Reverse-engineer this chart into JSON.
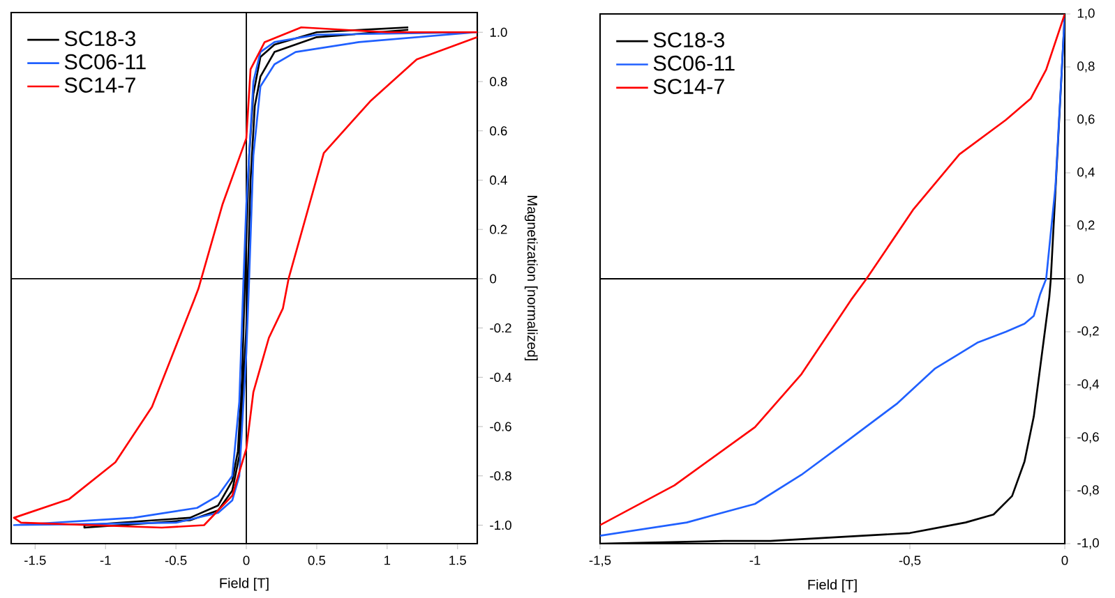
{
  "chart_data": [
    {
      "type": "line",
      "xlabel": "Field [T]",
      "ylabel": "Magnetization [normalized]",
      "legend": "top left",
      "xlim": [
        -1.67,
        1.64
      ],
      "ylim": [
        -1.075,
        1.08
      ],
      "xticks": [
        -1.5,
        -1,
        -0.5,
        0,
        0.5,
        1,
        1.5
      ],
      "yticks": [
        {
          "value": -1,
          "label": "-1.0"
        },
        -0.8,
        -0.6,
        -0.4,
        -0.2,
        0,
        0.2,
        0.4,
        0.6,
        0.8,
        {
          "value": 1,
          "label": "1.0"
        }
      ],
      "ref_lines": [
        {
          "axis": "y",
          "value": 0
        },
        {
          "axis": "x",
          "value": 0
        }
      ],
      "series": [
        {
          "name": "SC18-3",
          "color": "#000000",
          "x": [
            1.15,
            0.5,
            0.2,
            0.1,
            0.05,
            0.02,
            -0.01,
            -0.03,
            -0.06,
            -0.1,
            -0.2,
            -0.4,
            -1.15,
            -1.15,
            -0.4,
            -0.2,
            -0.1,
            -0.05,
            0,
            0.01,
            0.03,
            0.06,
            0.1,
            0.2,
            0.5,
            1.15
          ],
          "values": [
            1.02,
            1.0,
            0.95,
            0.9,
            0.75,
            0.5,
            0,
            -0.4,
            -0.7,
            -0.82,
            -0.92,
            -0.97,
            -1.0,
            -1.01,
            -0.98,
            -0.94,
            -0.86,
            -0.72,
            -0.2,
            0,
            0.4,
            0.7,
            0.82,
            0.92,
            0.98,
            1.01
          ]
        },
        {
          "name": "SC06-11",
          "color": "#2060ff",
          "x": [
            1.64,
            0.5,
            0.2,
            0.1,
            0.05,
            0,
            -0.02,
            -0.05,
            -0.1,
            -0.2,
            -0.35,
            -0.8,
            -1.65,
            -0.5,
            -0.2,
            -0.1,
            -0.05,
            0,
            0.02,
            0.05,
            0.1,
            0.2,
            0.35,
            0.8,
            1.63
          ],
          "values": [
            1.0,
            0.99,
            0.96,
            0.92,
            0.8,
            0.3,
            0,
            -0.5,
            -0.8,
            -0.88,
            -0.93,
            -0.97,
            -1.0,
            -0.99,
            -0.95,
            -0.9,
            -0.8,
            -0.3,
            0,
            0.5,
            0.78,
            0.87,
            0.92,
            0.96,
            1.0
          ]
        },
        {
          "name": "SC14-7",
          "color": "#ff0000",
          "x": [
            1.64,
            1.0,
            0.39,
            0.13,
            0.03,
            0,
            -0.17,
            -0.34,
            -0.37,
            -0.67,
            -0.93,
            -1.26,
            -1.65,
            -1.6,
            -0.6,
            -0.3,
            -0.1,
            0,
            0.05,
            0.16,
            0.26,
            0.3,
            0.55,
            0.88,
            1.21,
            1.64
          ],
          "values": [
            1.0,
            1.0,
            1.02,
            0.96,
            0.85,
            0.57,
            0.3,
            -0.04,
            -0.085,
            -0.52,
            -0.745,
            -0.895,
            -0.97,
            -0.99,
            -1.01,
            -1.0,
            -0.88,
            -0.69,
            -0.46,
            -0.24,
            -0.12,
            0,
            0.51,
            0.72,
            0.89,
            0.98
          ]
        }
      ]
    },
    {
      "type": "line",
      "xlabel": "Field [T]",
      "legend": "top left",
      "xlim": [
        -1.5,
        0
      ],
      "ylim": [
        -1,
        1
      ],
      "xticks": [
        {
          "value": -1.5,
          "label": "-1,5"
        },
        -1,
        {
          "value": -0.5,
          "label": "-0,5"
        },
        0
      ],
      "yticks": [
        {
          "value": -1,
          "label": "-1,0"
        },
        {
          "value": -0.8,
          "label": "-0,8"
        },
        {
          "value": -0.6,
          "label": "-0,6"
        },
        {
          "value": -0.4,
          "label": "-0,4"
        },
        {
          "value": -0.2,
          "label": "-0,2"
        },
        0,
        {
          "value": 0.2,
          "label": "0,2"
        },
        {
          "value": 0.4,
          "label": "0,4"
        },
        {
          "value": 0.6,
          "label": "0,6"
        },
        {
          "value": 0.8,
          "label": "0,8"
        },
        {
          "value": 1,
          "label": "1,0"
        }
      ],
      "ref_lines": [
        {
          "axis": "y",
          "value": 0
        }
      ],
      "series": [
        {
          "name": "SC18-3",
          "color": "#000000",
          "x": [
            -1.5,
            -1.1,
            -0.95,
            -0.5,
            -0.32,
            -0.23,
            -0.17,
            -0.13,
            -0.1,
            -0.07,
            -0.05,
            -0.045,
            0
          ],
          "values": [
            -1.0,
            -0.99,
            -0.99,
            -0.96,
            -0.92,
            -0.89,
            -0.82,
            -0.69,
            -0.52,
            -0.25,
            -0.07,
            0,
            1.0
          ]
        },
        {
          "name": "SC06-11",
          "color": "#2060ff",
          "x": [
            -1.5,
            -1.22,
            -1.0,
            -0.85,
            -0.7,
            -0.54,
            -0.42,
            -0.28,
            -0.19,
            -0.13,
            -0.1,
            -0.08,
            -0.06,
            -0.03,
            0
          ],
          "values": [
            -0.97,
            -0.92,
            -0.85,
            -0.74,
            -0.61,
            -0.47,
            -0.34,
            -0.24,
            -0.2,
            -0.17,
            -0.14,
            -0.06,
            0,
            0.35,
            1.0
          ]
        },
        {
          "name": "SC14-7",
          "color": "#ff0000",
          "x": [
            -1.5,
            -1.26,
            -1.0,
            -0.85,
            -0.69,
            -0.64,
            -0.49,
            -0.34,
            -0.19,
            -0.11,
            -0.06,
            0
          ],
          "values": [
            -0.93,
            -0.78,
            -0.56,
            -0.36,
            -0.08,
            0,
            0.26,
            0.47,
            0.6,
            0.68,
            0.79,
            1.0
          ]
        }
      ]
    }
  ]
}
